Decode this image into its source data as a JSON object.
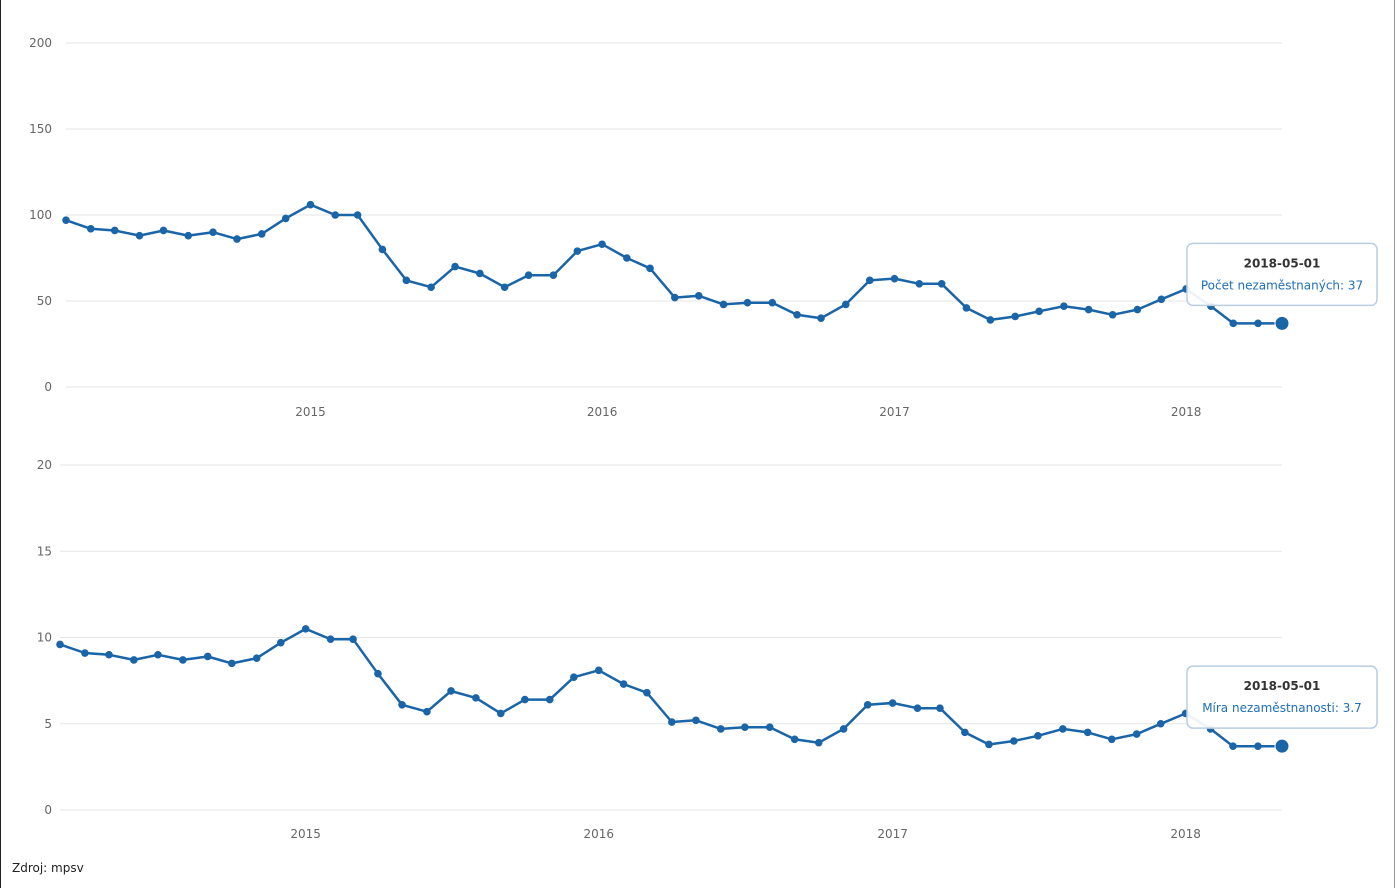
{
  "source": {
    "label": "Zdroj: mpsv"
  },
  "colors": {
    "line": "#1a64a8",
    "grid": "#e6e6e6",
    "tooltip_border": "#b9cde3",
    "tooltip_text": "#1f6fb8"
  },
  "chart_data": [
    {
      "type": "line",
      "ylim": [
        0,
        200
      ],
      "yticks": [
        0,
        50,
        100,
        150,
        200
      ],
      "xticks": [
        "2015",
        "2016",
        "2017",
        "2018"
      ],
      "xrange": [
        "2014-03-01",
        "2018-05-01"
      ],
      "x": [
        "2014-03",
        "2014-04",
        "2014-05",
        "2014-06",
        "2014-07",
        "2014-08",
        "2014-09",
        "2014-10",
        "2014-11",
        "2014-12",
        "2015-01",
        "2015-02",
        "2015-03",
        "2015-04",
        "2015-05",
        "2015-06",
        "2015-07",
        "2015-08",
        "2015-09",
        "2015-10",
        "2015-11",
        "2015-12",
        "2016-01",
        "2016-02",
        "2016-03",
        "2016-04",
        "2016-05",
        "2016-06",
        "2016-07",
        "2016-08",
        "2016-09",
        "2016-10",
        "2016-11",
        "2016-12",
        "2017-01",
        "2017-02",
        "2017-03",
        "2017-04",
        "2017-05",
        "2017-06",
        "2017-07",
        "2017-08",
        "2017-09",
        "2017-10",
        "2017-11",
        "2017-12",
        "2018-01",
        "2018-02",
        "2018-03",
        "2018-04",
        "2018-05"
      ],
      "values": [
        97,
        92,
        91,
        88,
        91,
        88,
        90,
        86,
        89,
        98,
        106,
        100,
        100,
        80,
        62,
        58,
        70,
        66,
        58,
        65,
        65,
        79,
        83,
        75,
        69,
        52,
        53,
        48,
        49,
        49,
        42,
        40,
        48,
        62,
        63,
        60,
        60,
        46,
        39,
        41,
        44,
        47,
        45,
        42,
        45,
        51,
        57,
        47,
        37,
        37,
        37
      ],
      "tooltip": {
        "date": "2018-05-01",
        "text": "Počet nezaměstnaných: 37"
      }
    },
    {
      "type": "line",
      "ylim": [
        0,
        20
      ],
      "yticks": [
        0,
        5,
        10,
        15,
        20
      ],
      "xticks": [
        "2015",
        "2016",
        "2017",
        "2018"
      ],
      "xrange": [
        "2014-03-01",
        "2018-05-01"
      ],
      "x": [
        "2014-03",
        "2014-04",
        "2014-05",
        "2014-06",
        "2014-07",
        "2014-08",
        "2014-09",
        "2014-10",
        "2014-11",
        "2014-12",
        "2015-01",
        "2015-02",
        "2015-03",
        "2015-04",
        "2015-05",
        "2015-06",
        "2015-07",
        "2015-08",
        "2015-09",
        "2015-10",
        "2015-11",
        "2015-12",
        "2016-01",
        "2016-02",
        "2016-03",
        "2016-04",
        "2016-05",
        "2016-06",
        "2016-07",
        "2016-08",
        "2016-09",
        "2016-10",
        "2016-11",
        "2016-12",
        "2017-01",
        "2017-02",
        "2017-03",
        "2017-04",
        "2017-05",
        "2017-06",
        "2017-07",
        "2017-08",
        "2017-09",
        "2017-10",
        "2017-11",
        "2017-12",
        "2018-01",
        "2018-02",
        "2018-03",
        "2018-04",
        "2018-05"
      ],
      "values": [
        9.6,
        9.1,
        9.0,
        8.7,
        9.0,
        8.7,
        8.9,
        8.5,
        8.8,
        9.7,
        10.5,
        9.9,
        9.9,
        7.9,
        6.1,
        5.7,
        6.9,
        6.5,
        5.6,
        6.4,
        6.4,
        7.7,
        8.1,
        7.3,
        6.8,
        5.1,
        5.2,
        4.7,
        4.8,
        4.8,
        4.1,
        3.9,
        4.7,
        6.1,
        6.2,
        5.9,
        5.9,
        4.5,
        3.8,
        4.0,
        4.3,
        4.7,
        4.5,
        4.1,
        4.4,
        5.0,
        5.6,
        4.7,
        3.7,
        3.7,
        3.7
      ],
      "tooltip": {
        "date": "2018-05-01",
        "text": "Míra nezaměstnanosti: 3.7"
      }
    }
  ]
}
